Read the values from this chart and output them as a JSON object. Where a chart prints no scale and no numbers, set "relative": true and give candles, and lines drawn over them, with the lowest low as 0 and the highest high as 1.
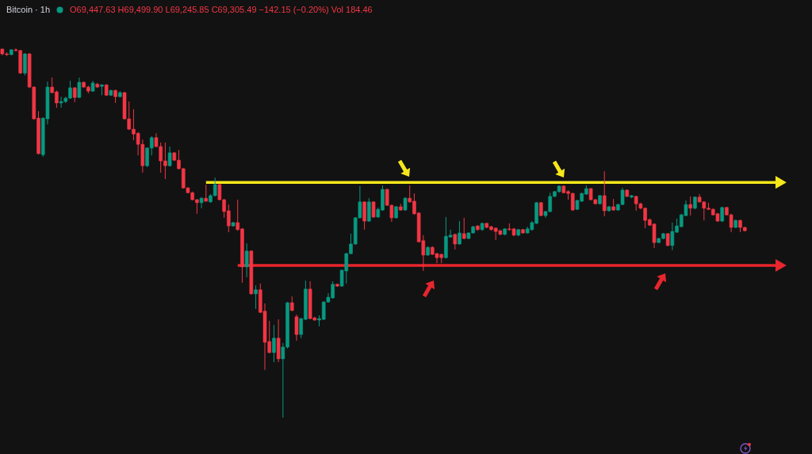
{
  "chart_data": {
    "type": "candlestick",
    "title": "Bitcoin · 1h",
    "subtitle": "O69,447.63 H69,499.90 L69,245.85 C69,305.49 −142.15 (−0.20%) Vol 184.46",
    "relative": true,
    "categories": [
      null,
      null,
      null,
      null,
      null,
      null,
      null,
      null,
      null,
      null,
      null,
      null,
      null,
      null,
      null,
      null,
      null,
      null,
      null,
      null,
      null,
      null,
      null,
      null,
      null,
      null,
      null,
      null,
      null,
      null,
      null,
      null,
      null,
      null,
      null,
      null,
      null,
      null,
      null,
      null,
      null,
      null,
      null,
      null,
      null,
      null,
      null,
      null,
      null,
      null,
      null,
      null,
      null,
      null,
      null,
      null,
      null,
      null,
      null,
      null,
      null,
      null,
      null,
      null,
      null,
      null,
      null,
      null,
      null,
      null,
      null,
      null,
      null,
      null,
      null,
      null,
      null,
      null,
      null,
      null,
      null,
      null,
      null,
      null,
      null,
      null,
      null,
      null,
      null,
      null,
      null,
      null,
      null,
      null,
      null,
      null,
      null,
      null,
      null,
      null,
      null,
      null,
      null,
      null,
      null,
      null,
      null,
      null,
      null,
      null,
      null,
      null,
      null,
      null,
      null,
      null,
      null,
      null,
      null,
      null,
      null,
      null,
      null,
      null,
      null,
      null,
      null,
      null,
      null,
      null,
      null,
      null,
      null,
      null,
      null,
      null,
      null,
      null,
      null,
      null,
      null,
      null,
      null,
      null,
      null,
      null,
      null,
      null,
      null,
      null,
      null,
      null,
      null,
      null,
      null,
      null,
      null,
      null,
      null,
      null,
      null,
      null,
      null,
      null,
      null,
      null,
      null,
      null,
      null,
      null,
      null,
      null,
      null,
      null,
      null,
      null,
      null,
      null,
      null
    ],
    "ohlc": [
      [
        0.998,
        1,
        0.981,
        0.985
      ],
      [
        0.985,
        0.989,
        0.979,
        0.983
      ],
      [
        0.983,
        0.998,
        0.981,
        0.996
      ],
      [
        0.996,
        1,
        0.991,
        0.994
      ],
      [
        0.994,
        0.996,
        0.931,
        0.933
      ],
      [
        0.933,
        0.987,
        0.927,
        0.985
      ],
      [
        0.985,
        0.987,
        0.893,
        0.895
      ],
      [
        0.895,
        0.897,
        0.807,
        0.809
      ],
      [
        0.811,
        0.83,
        0.712,
        0.715
      ],
      [
        0.712,
        0.813,
        0.706,
        0.811
      ],
      [
        0.809,
        0.91,
        0.794,
        0.895
      ],
      [
        0.895,
        0.921,
        0.878,
        0.88
      ],
      [
        0.882,
        0.886,
        0.839,
        0.852
      ],
      [
        0.852,
        0.869,
        0.839,
        0.856
      ],
      [
        0.856,
        0.869,
        0.852,
        0.865
      ],
      [
        0.865,
        0.912,
        0.863,
        0.893
      ],
      [
        0.893,
        0.895,
        0.854,
        0.867
      ],
      [
        0.867,
        0.921,
        0.865,
        0.908
      ],
      [
        0.908,
        0.91,
        0.893,
        0.895
      ],
      [
        0.895,
        0.899,
        0.878,
        0.884
      ],
      [
        0.884,
        0.912,
        0.882,
        0.906
      ],
      [
        0.903,
        0.906,
        0.893,
        0.895
      ],
      [
        0.897,
        0.903,
        0.873,
        0.901
      ],
      [
        0.901,
        0.903,
        0.871,
        0.873
      ],
      [
        0.873,
        0.888,
        0.871,
        0.886
      ],
      [
        0.886,
        0.888,
        0.852,
        0.869
      ],
      [
        0.869,
        0.884,
        0.867,
        0.88
      ],
      [
        0.88,
        0.882,
        0.807,
        0.809
      ],
      [
        0.809,
        0.856,
        0.779,
        0.781
      ],
      [
        0.781,
        0.835,
        0.751,
        0.768
      ],
      [
        0.77,
        0.773,
        0.71,
        0.74
      ],
      [
        0.74,
        0.753,
        0.663,
        0.682
      ],
      [
        0.682,
        0.732,
        0.678,
        0.73
      ],
      [
        0.73,
        0.762,
        0.71,
        0.758
      ],
      [
        0.758,
        0.77,
        0.732,
        0.734
      ],
      [
        0.734,
        0.745,
        0.663,
        0.695
      ],
      [
        0.695,
        0.745,
        0.646,
        0.682
      ],
      [
        0.682,
        0.734,
        0.68,
        0.717
      ],
      [
        0.717,
        0.719,
        0.695,
        0.697
      ],
      [
        0.697,
        0.725,
        0.672,
        0.674
      ],
      [
        0.674,
        0.676,
        0.62,
        0.622
      ],
      [
        0.622,
        0.624,
        0.607,
        0.609
      ],
      [
        0.609,
        0.612,
        0.588,
        0.59
      ],
      [
        0.59,
        0.592,
        0.552,
        0.582
      ],
      [
        0.582,
        0.597,
        0.567,
        0.594
      ],
      [
        0.594,
        0.631,
        0.584,
        0.586
      ],
      [
        0.584,
        0.605,
        0.582,
        0.601
      ],
      [
        0.601,
        0.65,
        0.599,
        0.631
      ],
      [
        0.631,
        0.633,
        0.588,
        0.59
      ],
      [
        0.59,
        0.592,
        0.541,
        0.558
      ],
      [
        0.56,
        0.577,
        0.502,
        0.519
      ],
      [
        0.519,
        0.53,
        0.517,
        0.528
      ],
      [
        0.528,
        0.59,
        0.506,
        0.509
      ],
      [
        0.511,
        0.513,
        0.365,
        0.408
      ],
      [
        0.408,
        0.472,
        0.38,
        0.451
      ],
      [
        0.451,
        0.453,
        0.333,
        0.335
      ],
      [
        0.335,
        0.358,
        0.294,
        0.346
      ],
      [
        0.346,
        0.363,
        0.283,
        0.285
      ],
      [
        0.288,
        0.309,
        0.129,
        0.204
      ],
      [
        0.206,
        0.262,
        0.174,
        0.176
      ],
      [
        0.176,
        0.251,
        0.15,
        0.215
      ],
      [
        0.215,
        0.266,
        0.15,
        0.159
      ],
      [
        0.159,
        0.202,
        0,
        0.191
      ],
      [
        0.191,
        0.313,
        0.187,
        0.311
      ],
      [
        0.311,
        0.328,
        0.288,
        0.29
      ],
      [
        0.273,
        0.279,
        0.208,
        0.225
      ],
      [
        0.225,
        0.27,
        0.215,
        0.268
      ],
      [
        0.266,
        0.371,
        0.264,
        0.348
      ],
      [
        0.348,
        0.369,
        0.266,
        0.268
      ],
      [
        0.27,
        0.273,
        0.262,
        0.264
      ],
      [
        0.264,
        0.277,
        0.247,
        0.268
      ],
      [
        0.266,
        0.315,
        0.264,
        0.313
      ],
      [
        0.313,
        0.337,
        0.311,
        0.326
      ],
      [
        0.324,
        0.369,
        0.322,
        0.361
      ],
      [
        0.361,
        0.363,
        0.354,
        0.356
      ],
      [
        0.356,
        0.401,
        0.354,
        0.399
      ],
      [
        0.397,
        0.446,
        0.363,
        0.444
      ],
      [
        0.444,
        0.498,
        0.442,
        0.47
      ],
      [
        0.47,
        0.543,
        0.468,
        0.541
      ],
      [
        0.541,
        0.627,
        0.539,
        0.584
      ],
      [
        0.584,
        0.586,
        0.509,
        0.532
      ],
      [
        0.532,
        0.594,
        0.53,
        0.584
      ],
      [
        0.584,
        0.586,
        0.541,
        0.543
      ],
      [
        0.543,
        0.569,
        0.541,
        0.564
      ],
      [
        0.562,
        0.629,
        0.56,
        0.618
      ],
      [
        0.618,
        0.62,
        0.573,
        0.575
      ],
      [
        0.575,
        0.577,
        0.53,
        0.541
      ],
      [
        0.541,
        0.573,
        0.539,
        0.571
      ],
      [
        0.571,
        0.579,
        0.56,
        0.562
      ],
      [
        0.562,
        0.597,
        0.56,
        0.594
      ],
      [
        0.594,
        0.629,
        0.582,
        0.584
      ],
      [
        0.586,
        0.607,
        0.549,
        0.552
      ],
      [
        0.554,
        0.556,
        0.474,
        0.476
      ],
      [
        0.479,
        0.494,
        0.397,
        0.44
      ],
      [
        0.44,
        0.464,
        0.438,
        0.461
      ],
      [
        0.461,
        0.464,
        0.44,
        0.442
      ],
      [
        0.444,
        0.446,
        0.418,
        0.433
      ],
      [
        0.442,
        0.444,
        0.418,
        0.433
      ],
      [
        0.433,
        0.543,
        0.431,
        0.491
      ],
      [
        0.489,
        0.509,
        0.487,
        0.494
      ],
      [
        0.496,
        0.498,
        0.455,
        0.47
      ],
      [
        0.47,
        0.532,
        0.468,
        0.5
      ],
      [
        0.498,
        0.541,
        0.483,
        0.485
      ],
      [
        0.485,
        0.502,
        0.483,
        0.5
      ],
      [
        0.5,
        0.519,
        0.498,
        0.517
      ],
      [
        0.519,
        0.521,
        0.506,
        0.509
      ],
      [
        0.509,
        0.528,
        0.506,
        0.526
      ],
      [
        0.526,
        0.528,
        0.513,
        0.515
      ],
      [
        0.517,
        0.519,
        0.506,
        0.509
      ],
      [
        0.513,
        0.515,
        0.481,
        0.504
      ],
      [
        0.506,
        0.509,
        0.494,
        0.496
      ],
      [
        0.496,
        0.513,
        0.494,
        0.511
      ],
      [
        0.511,
        0.526,
        0.506,
        0.509
      ],
      [
        0.511,
        0.513,
        0.491,
        0.494
      ],
      [
        0.494,
        0.511,
        0.491,
        0.509
      ],
      [
        0.509,
        0.511,
        0.498,
        0.5
      ],
      [
        0.5,
        0.517,
        0.498,
        0.511
      ],
      [
        0.509,
        0.532,
        0.506,
        0.528
      ],
      [
        0.526,
        0.584,
        0.524,
        0.582
      ],
      [
        0.582,
        0.584,
        0.545,
        0.547
      ],
      [
        0.547,
        0.56,
        0.541,
        0.558
      ],
      [
        0.558,
        0.609,
        0.556,
        0.599
      ],
      [
        0.599,
        0.614,
        0.597,
        0.612
      ],
      [
        0.612,
        0.629,
        0.609,
        0.627
      ],
      [
        0.627,
        0.629,
        0.607,
        0.609
      ],
      [
        0.612,
        0.616,
        0.59,
        0.607
      ],
      [
        0.607,
        0.609,
        0.56,
        0.562
      ],
      [
        0.564,
        0.59,
        0.562,
        0.588
      ],
      [
        0.586,
        0.609,
        0.584,
        0.607
      ],
      [
        0.605,
        0.629,
        0.603,
        0.62
      ],
      [
        0.62,
        0.622,
        0.588,
        0.59
      ],
      [
        0.59,
        0.592,
        0.577,
        0.579
      ],
      [
        0.579,
        0.603,
        0.577,
        0.601
      ],
      [
        0.601,
        0.667,
        0.545,
        0.56
      ],
      [
        0.56,
        0.573,
        0.558,
        0.571
      ],
      [
        0.571,
        0.592,
        0.56,
        0.562
      ],
      [
        0.562,
        0.579,
        0.56,
        0.577
      ],
      [
        0.577,
        0.622,
        0.575,
        0.616
      ],
      [
        0.616,
        0.618,
        0.597,
        0.599
      ],
      [
        0.597,
        0.603,
        0.594,
        0.601
      ],
      [
        0.599,
        0.601,
        0.56,
        0.579
      ],
      [
        0.579,
        0.582,
        0.564,
        0.567
      ],
      [
        0.567,
        0.569,
        0.513,
        0.534
      ],
      [
        0.536,
        0.539,
        0.519,
        0.521
      ],
      [
        0.524,
        0.526,
        0.459,
        0.474
      ],
      [
        0.474,
        0.487,
        0.472,
        0.485
      ],
      [
        0.485,
        0.5,
        0.483,
        0.498
      ],
      [
        0.498,
        0.5,
        0.464,
        0.466
      ],
      [
        0.466,
        0.528,
        0.453,
        0.504
      ],
      [
        0.502,
        0.539,
        0.5,
        0.519
      ],
      [
        0.517,
        0.552,
        0.515,
        0.549
      ],
      [
        0.547,
        0.588,
        0.545,
        0.577
      ],
      [
        0.577,
        0.599,
        0.547,
        0.567
      ],
      [
        0.567,
        0.599,
        0.564,
        0.597
      ],
      [
        0.597,
        0.605,
        0.582,
        0.584
      ],
      [
        0.584,
        0.586,
        0.534,
        0.567
      ],
      [
        0.567,
        0.582,
        0.562,
        0.564
      ],
      [
        0.564,
        0.567,
        0.547,
        0.549
      ],
      [
        0.552,
        0.554,
        0.53,
        0.532
      ],
      [
        0.532,
        0.571,
        0.53,
        0.569
      ],
      [
        0.569,
        0.571,
        0.547,
        0.549
      ],
      [
        0.549,
        0.552,
        0.502,
        0.515
      ],
      [
        0.515,
        0.536,
        0.513,
        0.534
      ],
      [
        0.534,
        0.536,
        0.502,
        0.515
      ],
      [
        0.515,
        0.517,
        0.504,
        0.506
      ],
      null,
      null,
      null,
      null,
      null,
      null,
      null,
      null,
      null,
      null,
      null,
      null,
      null,
      null
    ],
    "colors": [
      "#f23645",
      "#f23645",
      "#089981",
      "#f23645",
      "#f23645",
      "#089981",
      "#f23645",
      "#f23645",
      "#f23645",
      "#089981",
      "#089981",
      "#f23645",
      "#f23645",
      "#089981",
      "#089981",
      "#089981",
      "#f23645",
      "#089981",
      "#f23645",
      "#f23645",
      "#089981",
      "#f23645",
      "#089981",
      "#f23645",
      "#089981",
      "#f23645",
      "#089981",
      "#f23645",
      "#f23645",
      "#f23645",
      "#f23645",
      "#f23645",
      "#089981",
      "#089981",
      "#f23645",
      "#f23645",
      "#f23645",
      "#089981",
      "#f23645",
      "#f23645",
      "#f23645",
      "#f23645",
      "#f23645",
      "#f23645",
      "#089981",
      "#f23645",
      "#089981",
      "#089981",
      "#f23645",
      "#f23645",
      "#f23645",
      "#089981",
      "#f23645",
      "#f23645",
      "#089981",
      "#f23645",
      "#089981",
      "#f23645",
      "#f23645",
      "#f23645",
      "#089981",
      "#f23645",
      "#089981",
      "#089981",
      "#f23645",
      "#f23645",
      "#089981",
      "#089981",
      "#f23645",
      "#f23645",
      "#089981",
      "#089981",
      "#089981",
      "#089981",
      "#f23645",
      "#089981",
      "#089981",
      "#089981",
      "#089981",
      "#089981",
      "#f23645",
      "#089981",
      "#f23645",
      "#089981",
      "#089981",
      "#f23645",
      "#f23645",
      "#089981",
      "#f23645",
      "#089981",
      "#f23645",
      "#f23645",
      "#f23645",
      "#f23645",
      "#089981",
      "#f23645",
      "#f23645",
      "#f23645",
      "#089981",
      "#089981",
      "#f23645",
      "#089981",
      "#f23645",
      "#089981",
      "#089981",
      "#f23645",
      "#089981",
      "#f23645",
      "#f23645",
      "#f23645",
      "#f23645",
      "#089981",
      "#f23645",
      "#f23645",
      "#089981",
      "#f23645",
      "#089981",
      "#089981",
      "#089981",
      "#f23645",
      "#089981",
      "#089981",
      "#089981",
      "#089981",
      "#f23645",
      "#f23645",
      "#f23645",
      "#089981",
      "#089981",
      "#089981",
      "#f23645",
      "#f23645",
      "#089981",
      "#f23645",
      "#089981",
      "#f23645",
      "#089981",
      "#089981",
      "#f23645",
      "#089981",
      "#f23645",
      "#f23645",
      "#f23645",
      "#f23645",
      "#f23645",
      "#089981",
      "#089981",
      "#f23645",
      "#089981",
      "#089981",
      "#089981",
      "#089981",
      "#f23645",
      "#089981",
      "#f23645",
      "#f23645",
      "#f23645",
      "#f23645",
      "#f23645",
      "#089981",
      "#f23645",
      "#f23645",
      "#089981",
      "#f23645",
      "#f23645",
      null,
      null,
      null,
      null,
      null,
      null,
      null,
      null,
      null,
      null,
      null,
      null,
      null,
      null
    ],
    "series": [
      {
        "type": "line",
        "color": "#f5e71b",
        "values": [
          null,
          null,
          null,
          null,
          null,
          null,
          null,
          null,
          null,
          null,
          null,
          null,
          null,
          null,
          null,
          null,
          null,
          null,
          null,
          null,
          null,
          null,
          null,
          null,
          null,
          null,
          null,
          null,
          null,
          null,
          null,
          null,
          null,
          null,
          null,
          null,
          null,
          null,
          null,
          null,
          null,
          null,
          null,
          null,
          null,
          0.637,
          0.637,
          0.637,
          0.637,
          0.637,
          0.637,
          0.637,
          0.637,
          0.637,
          0.637,
          0.637,
          0.637,
          0.637,
          0.637,
          0.637,
          0.637,
          0.637,
          0.637,
          0.637,
          0.637,
          0.637,
          0.637,
          0.637,
          0.637,
          0.637,
          0.637,
          0.637,
          0.637,
          0.637,
          0.637,
          0.637,
          0.637,
          0.637,
          0.637,
          0.637,
          0.637,
          0.637,
          0.637,
          0.637,
          0.637,
          0.637,
          0.637,
          0.637,
          0.637,
          0.637,
          0.637,
          0.637,
          0.637,
          0.637,
          0.637,
          0.637,
          0.637,
          0.637,
          0.637,
          0.637,
          0.637,
          0.637,
          0.637,
          0.637,
          0.637,
          0.637,
          0.637,
          0.637,
          0.637,
          0.637,
          0.637,
          0.637,
          0.637,
          0.637,
          0.637,
          0.637,
          0.637,
          0.637,
          0.637,
          0.637,
          0.637,
          0.637,
          0.637,
          0.637,
          0.637,
          0.637,
          0.637,
          0.637,
          0.637,
          0.637,
          0.637,
          0.637,
          0.637,
          0.637,
          0.637,
          0.637,
          0.637,
          0.637,
          0.637,
          0.637,
          0.637,
          0.637,
          0.637,
          0.637,
          0.637,
          0.637,
          0.637,
          0.637,
          0.637,
          0.637,
          0.637,
          0.637,
          0.637,
          0.637,
          0.637,
          0.637,
          0.637,
          0.637,
          0.637,
          0.637,
          0.637,
          0.637,
          0.637,
          0.637,
          0.637,
          0.637,
          0.637,
          0.637,
          0.637,
          0.637,
          0.637,
          0.637,
          0.637,
          null,
          null,
          null,
          null,
          null,
          null
        ]
      },
      {
        "type": "line",
        "color": "#e8262e",
        "values": [
          null,
          null,
          null,
          null,
          null,
          null,
          null,
          null,
          null,
          null,
          null,
          null,
          null,
          null,
          null,
          null,
          null,
          null,
          null,
          null,
          null,
          null,
          null,
          null,
          null,
          null,
          null,
          null,
          null,
          null,
          null,
          null,
          null,
          null,
          null,
          null,
          null,
          null,
          null,
          null,
          null,
          null,
          null,
          null,
          null,
          null,
          null,
          null,
          null,
          null,
          null,
          null,
          0.412,
          0.412,
          0.412,
          0.412,
          0.412,
          0.412,
          0.412,
          0.412,
          0.412,
          0.412,
          0.412,
          0.412,
          0.412,
          0.412,
          0.412,
          0.412,
          0.412,
          0.412,
          0.412,
          0.412,
          0.412,
          0.412,
          0.412,
          0.412,
          0.412,
          0.412,
          0.412,
          0.412,
          0.412,
          0.412,
          0.412,
          0.412,
          0.412,
          0.412,
          0.412,
          0.412,
          0.412,
          0.412,
          0.412,
          0.412,
          0.412,
          0.412,
          0.412,
          0.412,
          0.412,
          0.412,
          0.412,
          0.412,
          0.412,
          0.412,
          0.412,
          0.412,
          0.412,
          0.412,
          0.412,
          0.412,
          0.412,
          0.412,
          0.412,
          0.412,
          0.412,
          0.412,
          0.412,
          0.412,
          0.412,
          0.412,
          0.412,
          0.412,
          0.412,
          0.412,
          0.412,
          0.412,
          0.412,
          0.412,
          0.412,
          0.412,
          0.412,
          0.412,
          0.412,
          0.412,
          0.412,
          0.412,
          0.412,
          0.412,
          0.412,
          0.412,
          0.412,
          0.412,
          0.412,
          0.412,
          0.412,
          0.412,
          0.412,
          0.412,
          0.412,
          0.412,
          0.412,
          0.412,
          0.412,
          0.412,
          0.412,
          0.412,
          0.412,
          0.412,
          0.412,
          0.412,
          0.412,
          0.412,
          0.412,
          0.412,
          0.412,
          0.412,
          0.412,
          0.412,
          0.412,
          0.412,
          0.412,
          0.412,
          0.412,
          0.412,
          0.412,
          null,
          null,
          null,
          null,
          null,
          null
        ]
      }
    ]
  }
}
